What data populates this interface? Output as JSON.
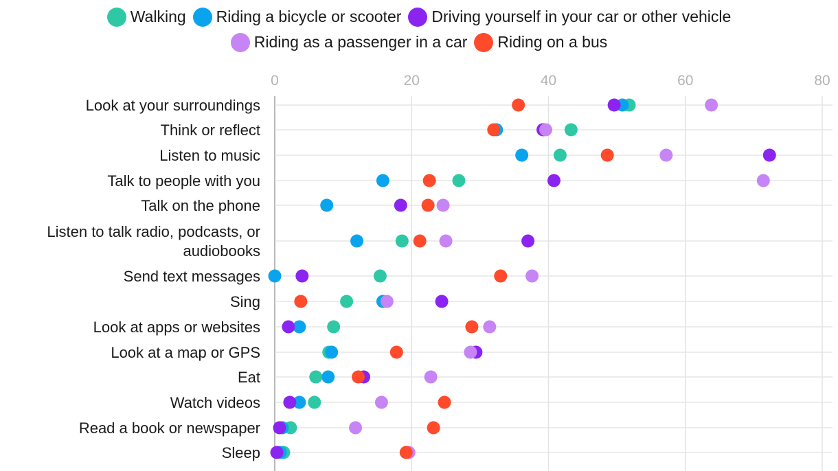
{
  "chart_data": {
    "type": "scatter",
    "xlim": [
      0,
      80
    ],
    "xticks": [
      "0",
      "20",
      "40",
      "60",
      "80"
    ],
    "legend_position": "top-center",
    "categories": [
      "Look at your surroundings",
      "Think or reflect",
      "Listen to music",
      "Talk to people with you",
      "Talk on the phone",
      "Listen to talk radio, podcasts, or audiobooks",
      "Send text messages",
      "Sing",
      "Look at apps or websites",
      "Look at a map or GPS",
      "Eat",
      "Watch videos",
      "Read a book or newspaper",
      "Sleep"
    ],
    "category_lines": [
      [
        "Look at your surroundings"
      ],
      [
        "Think or reflect"
      ],
      [
        "Listen to music"
      ],
      [
        "Talk to people with you"
      ],
      [
        "Talk on the phone"
      ],
      [
        "Listen to talk radio, podcasts, or",
        "audiobooks"
      ],
      [
        "Send text messages"
      ],
      [
        "Sing"
      ],
      [
        "Look at apps or websites"
      ],
      [
        "Look at a map or GPS"
      ],
      [
        "Eat"
      ],
      [
        "Watch videos"
      ],
      [
        "Read a book or newspaper"
      ],
      [
        "Sleep"
      ]
    ],
    "series": [
      {
        "name": "Walking",
        "color": "#2ec9a4",
        "values": [
          51.8,
          43.3,
          41.7,
          26.9,
          null,
          18.6,
          15.4,
          10.5,
          8.6,
          7.9,
          6.0,
          5.8,
          2.3,
          1.3
        ]
      },
      {
        "name": "Riding a bicycle or scooter",
        "color": "#0aa4ee",
        "values": [
          50.8,
          32.4,
          36.1,
          15.8,
          7.6,
          12.0,
          0.0,
          15.8,
          3.6,
          8.3,
          7.8,
          3.6,
          1.1,
          0.8
        ]
      },
      {
        "name": "Driving yourself in your car or other vehicle",
        "color": "#8b24f0",
        "values": [
          49.6,
          39.2,
          72.3,
          40.8,
          18.4,
          37.0,
          4.0,
          24.4,
          2.0,
          29.4,
          13.0,
          2.2,
          0.7,
          0.3
        ]
      },
      {
        "name": "Riding as a passenger in a car",
        "color": "#c684f5",
        "values": [
          63.8,
          39.6,
          57.2,
          71.4,
          24.6,
          25.0,
          37.6,
          16.4,
          31.4,
          28.6,
          22.8,
          15.6,
          11.8,
          19.6
        ]
      },
      {
        "name": "Riding on a bus",
        "color": "#ff4a2c",
        "values": [
          35.6,
          32.0,
          48.6,
          22.6,
          22.4,
          21.2,
          33.0,
          3.8,
          28.8,
          17.8,
          12.2,
          24.8,
          23.2,
          19.2
        ]
      }
    ]
  }
}
